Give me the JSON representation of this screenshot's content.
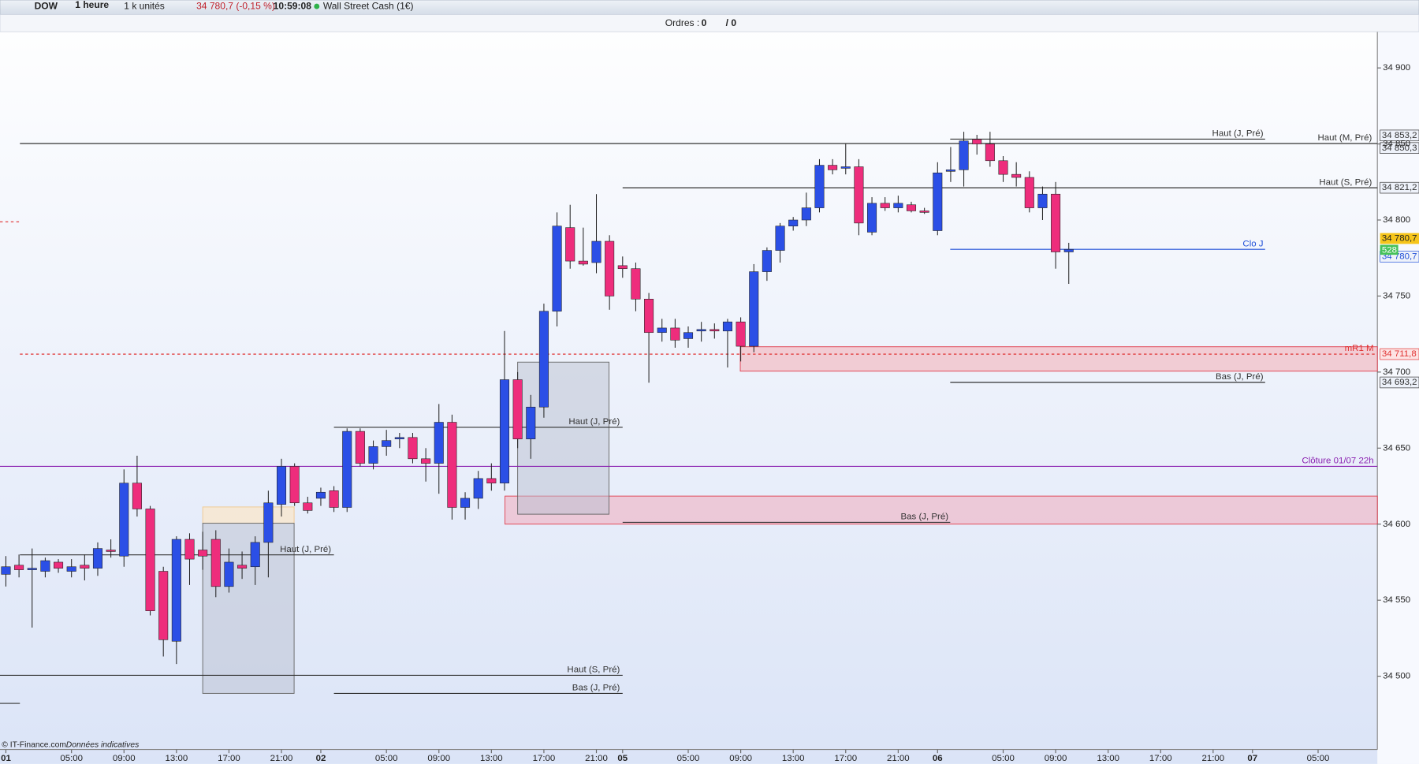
{
  "toolbar": {
    "instrument": "DOW",
    "period": "1 heure",
    "units": "1 k unités",
    "change": "34 780,7 (-0,15 %)",
    "time": "10:59:08",
    "name": "Wall Street Cash (1€)",
    "orders_label": "Ordres :",
    "orders": "0",
    "orders_total": "/ 0"
  },
  "footer": {
    "source": "© IT-Finance.com",
    "note": "Données indicatives"
  },
  "chart_data": {
    "type": "candlestick",
    "categories": [
      "01",
      null,
      null,
      null,
      null,
      "05:00",
      null,
      null,
      null,
      "09:00",
      null,
      null,
      null,
      "13:00",
      null,
      null,
      null,
      "17:00",
      null,
      null,
      null,
      "21:00",
      null,
      null,
      "02",
      null,
      null,
      null,
      null,
      "05:00",
      null,
      null,
      null,
      "09:00",
      null,
      null,
      null,
      "13:00",
      null,
      null,
      null,
      "17:00",
      null,
      null,
      null,
      "21:00",
      null,
      "05",
      null,
      null,
      null,
      null,
      "05:00",
      null,
      null,
      null,
      "09:00",
      null,
      null,
      null,
      "13:00",
      null,
      null,
      null,
      "17:00",
      null,
      null,
      null,
      "21:00",
      null,
      null,
      "06",
      null,
      null,
      null,
      null,
      "05:00",
      null,
      null,
      null,
      "09:00",
      null,
      null,
      null,
      "13:00",
      null,
      null,
      null,
      "17:00",
      null,
      null,
      null,
      "21:00",
      null,
      null,
      "07",
      null,
      null,
      null,
      null,
      "05:00"
    ],
    "open": [
      34567,
      34573,
      34570,
      34569,
      34575,
      34569,
      34573,
      34571,
      34583,
      34579,
      34627,
      34610,
      34569,
      34523,
      34590,
      34583,
      34590,
      34559,
      34573,
      34572,
      34588,
      34613,
      34638,
      34614,
      34617,
      34622,
      34611,
      34661,
      34640,
      34651,
      34656,
      34657,
      34643,
      34640,
      34667,
      34611,
      34617,
      34630,
      34627,
      34695,
      34656,
      34677,
      34740,
      34795,
      34773,
      34772,
      34786,
      34770,
      34768,
      34748,
      34726,
      34729,
      34722,
      34727,
      34728,
      34727,
      34733,
      34717,
      34766,
      34780,
      34796,
      34800,
      34808,
      34836,
      34834,
      34835,
      34792,
      34811,
      34808,
      34810,
      34806,
      34793,
      34832,
      34833,
      34853,
      34850,
      34839,
      34830,
      34828,
      34808,
      34817,
      34779,
      null,
      null,
      null,
      null,
      null,
      null,
      null,
      null,
      null,
      null,
      null,
      null,
      null,
      null,
      null,
      null,
      null,
      null,
      null
    ],
    "high": [
      34579,
      34580,
      34584,
      34578,
      34577,
      34577,
      34580,
      34588,
      34590,
      34636,
      34645,
      34612,
      34572,
      34592,
      34594,
      34595,
      34596,
      34584,
      34582,
      34592,
      34622,
      34643,
      34640,
      34618,
      34624,
      34625,
      34663,
      34663,
      34655,
      34662,
      34660,
      34660,
      34650,
      34679,
      34672,
      34621,
      34635,
      34640,
      34727,
      34700,
      34685,
      34745,
      34805,
      34810,
      34795,
      34817,
      34790,
      34776,
      34772,
      34752,
      34735,
      34735,
      34730,
      34733,
      34732,
      34735,
      34736,
      34771,
      34782,
      34798,
      34802,
      34818,
      34840,
      34840,
      34850,
      34840,
      34815,
      34815,
      34816,
      34812,
      34808,
      34838,
      34848,
      34858,
      34856,
      34858,
      34842,
      34838,
      34832,
      34822,
      34825,
      34785,
      null,
      null,
      null,
      null,
      null,
      null,
      null,
      null,
      null,
      null,
      null,
      null,
      null,
      null,
      null,
      null,
      null,
      null,
      null
    ],
    "low": [
      34559,
      34565,
      34532,
      34565,
      34568,
      34565,
      34563,
      34566,
      34578,
      34572,
      34605,
      34540,
      34513,
      34508,
      34560,
      34570,
      34552,
      34555,
      34564,
      34560,
      34565,
      34605,
      34612,
      34607,
      34612,
      34608,
      34608,
      34638,
      34636,
      34645,
      34650,
      34640,
      34628,
      34620,
      34603,
      34603,
      34610,
      34622,
      34622,
      34650,
      34643,
      34670,
      34730,
      34768,
      34770,
      34765,
      34741,
      34762,
      34740,
      34693,
      34720,
      34716,
      34716,
      34720,
      34722,
      34703,
      34707,
      34713,
      34760,
      34772,
      34793,
      34796,
      34805,
      34830,
      34830,
      34790,
      34790,
      34806,
      34805,
      34805,
      34804,
      34790,
      34825,
      34822,
      34843,
      34835,
      34825,
      34822,
      34805,
      34800,
      34768,
      34758,
      null,
      null,
      null,
      null,
      null,
      null,
      null,
      null,
      null,
      null,
      null,
      null,
      null,
      null,
      null,
      null,
      null,
      null,
      null
    ],
    "close": [
      34572,
      34570,
      34571,
      34576,
      34571,
      34572,
      34571,
      34584,
      34582,
      34627,
      34610,
      34543,
      34524,
      34590,
      34577,
      34579,
      34559,
      34575,
      34571,
      34588,
      34614,
      34638,
      34614,
      34609,
      34621,
      34611,
      34661,
      34640,
      34651,
      34655,
      34657,
      34643,
      34640,
      34667,
      34611,
      34617,
      34630,
      34627,
      34695,
      34656,
      34677,
      34740,
      34796,
      34773,
      34771,
      34786,
      34750,
      34768,
      34748,
      34726,
      34729,
      34721,
      34726,
      34728,
      34727,
      34733,
      34717,
      34766,
      34780,
      34796,
      34800,
      34808,
      34836,
      34833,
      34835,
      34798,
      34811,
      34808,
      34811,
      34806,
      34805,
      34831,
      34833,
      34852,
      34850,
      34839,
      34830,
      34828,
      34808,
      34817,
      34779,
      34780.7,
      null,
      null,
      null,
      null,
      null,
      null,
      null,
      null,
      null,
      null,
      null,
      null,
      null,
      null,
      null,
      null,
      null,
      null,
      null
    ],
    "up_color": "#2b4fe6",
    "down_color": "#ee2d7c",
    "ylim": [
      34451.8,
      34923.8
    ],
    "yticks": [
      {
        "value": 34500,
        "label": "34 500"
      },
      {
        "value": 34550,
        "label": "34 550"
      },
      {
        "value": 34600,
        "label": "34 600"
      },
      {
        "value": 34650,
        "label": "34 650"
      },
      {
        "value": 34700,
        "label": "34 700"
      },
      {
        "value": 34750,
        "label": "34 750"
      },
      {
        "value": 34800,
        "label": "34 800"
      },
      {
        "value": 34850,
        "label": "34 850"
      },
      {
        "value": 34900,
        "label": "34 900"
      }
    ],
    "levels": [
      {
        "name": "Haut (J, Pré)",
        "value": 34853.2,
        "label": "34 853,2",
        "color": "#333333"
      },
      {
        "name": "Haut (M, Pré)",
        "value": 34850.3,
        "label": "34 850,3",
        "color": "#333333"
      },
      {
        "name": "Haut (S, Pré)",
        "value": 34821.2,
        "label": "34 821,2",
        "color": "#333333"
      },
      {
        "name": "Clo J",
        "value": 34780.7,
        "label": "34 780,7",
        "color": "#1f4fd8"
      },
      {
        "name": "mR1 M",
        "value": 34711.8,
        "label": "34 711,8",
        "color": "#e0302f",
        "dashed": true
      },
      {
        "name": "Bas (J, Pré)",
        "value": 34693.2,
        "label": "34 693,2",
        "color": "#333333"
      },
      {
        "name": "Haut (J, Pré)",
        "value": 34663.7,
        "color": "#333333"
      },
      {
        "name": "Clôture 01/07 22h",
        "value": 34638,
        "color": "#8a1fb0"
      },
      {
        "name": "Bas (J, Pré)",
        "value": 34601.2,
        "color": "#333333"
      },
      {
        "name": "Haut (J, Pré)",
        "value": 34579.8,
        "color": "#333333"
      },
      {
        "name": "Haut (S, Pré)",
        "value": 34500.6,
        "color": "#333333"
      },
      {
        "name": "Bas (J, Pré)",
        "value": 34488.7,
        "color": "#333333"
      }
    ],
    "last": {
      "value": 34780.7,
      "label": "34 780,7",
      "countdown": "528"
    }
  }
}
